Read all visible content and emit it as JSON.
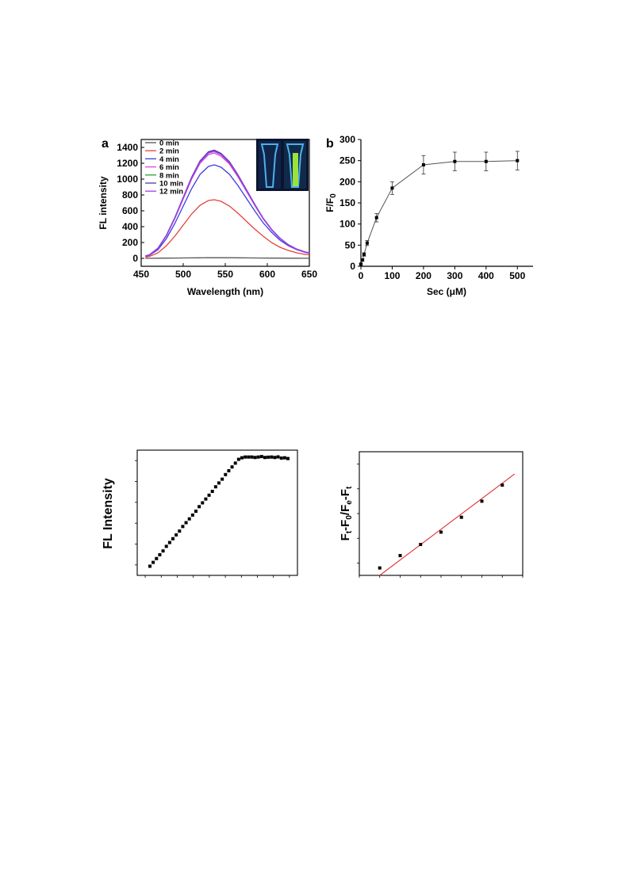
{
  "chart_data": [
    {
      "panel_label": "a",
      "type": "line",
      "xlabel": "Wavelength (nm)",
      "ylabel": "FL intensity",
      "xlim": [
        450,
        650
      ],
      "ylim": [
        -100,
        1500
      ],
      "xticks": [
        450,
        500,
        550,
        600,
        650
      ],
      "yticks": [
        0,
        200,
        400,
        600,
        800,
        1000,
        1200,
        1400
      ],
      "legend_position": "top-left",
      "inset": "photo of two cuvettes under UV light; right cuvette shows green fluorescence",
      "x": [
        455,
        460,
        470,
        480,
        490,
        500,
        510,
        520,
        530,
        537,
        545,
        555,
        565,
        575,
        585,
        595,
        605,
        615,
        625,
        635,
        645,
        650
      ],
      "series": [
        {
          "name": "0 min",
          "color": "#555555",
          "values": [
            0,
            1,
            2,
            3,
            4,
            5,
            6,
            7,
            8,
            8,
            8,
            8,
            7,
            6,
            5,
            4,
            3,
            3,
            2,
            2,
            1,
            1
          ]
        },
        {
          "name": "2 min",
          "color": "#e8413a",
          "values": [
            15,
            25,
            70,
            160,
            280,
            420,
            560,
            670,
            730,
            740,
            720,
            660,
            570,
            470,
            370,
            280,
            200,
            140,
            100,
            70,
            50,
            45
          ]
        },
        {
          "name": "4 min",
          "color": "#3d3ae0",
          "values": [
            25,
            40,
            110,
            250,
            440,
            660,
            880,
            1060,
            1160,
            1180,
            1150,
            1060,
            920,
            760,
            600,
            450,
            330,
            230,
            160,
            110,
            75,
            65
          ]
        },
        {
          "name": "6 min",
          "color": "#e040e0",
          "values": [
            28,
            45,
            125,
            285,
            500,
            750,
            1000,
            1200,
            1310,
            1330,
            1290,
            1190,
            1030,
            850,
            670,
            500,
            360,
            250,
            170,
            115,
            80,
            70
          ]
        },
        {
          "name": "8 min",
          "color": "#2e9e3a",
          "values": [
            30,
            46,
            128,
            290,
            510,
            765,
            1020,
            1225,
            1340,
            1360,
            1320,
            1215,
            1050,
            865,
            680,
            505,
            365,
            255,
            172,
            116,
            80,
            70
          ]
        },
        {
          "name": "10 min",
          "color": "#4b3aa8",
          "values": [
            30,
            47,
            130,
            293,
            515,
            770,
            1025,
            1230,
            1345,
            1365,
            1325,
            1220,
            1055,
            870,
            684,
            508,
            367,
            256,
            173,
            117,
            81,
            71
          ]
        },
        {
          "name": "12 min",
          "color": "#a040e8",
          "values": [
            29,
            46,
            127,
            288,
            507,
            760,
            1012,
            1215,
            1330,
            1350,
            1310,
            1205,
            1042,
            860,
            676,
            502,
            362,
            253,
            171,
            115,
            80,
            70
          ]
        }
      ]
    },
    {
      "panel_label": "b",
      "type": "scatter",
      "xlabel": "Sec (μM)",
      "ylabel": "F/F0",
      "ylabel_main": "F/F",
      "ylabel_sub": "0",
      "xlim": [
        0,
        550
      ],
      "ylim": [
        0,
        300
      ],
      "xticks": [
        0,
        100,
        200,
        300,
        400,
        500
      ],
      "yticks": [
        0,
        50,
        100,
        150,
        200,
        250,
        300
      ],
      "x": [
        0,
        5,
        10,
        20,
        50,
        100,
        200,
        300,
        400,
        500
      ],
      "values": [
        5,
        15,
        28,
        55,
        115,
        185,
        240,
        248,
        248,
        250
      ],
      "error": [
        2,
        3,
        4,
        6,
        10,
        15,
        22,
        22,
        22,
        22
      ]
    },
    {
      "type": "scatter",
      "ylabel": "FL Intensity",
      "xlabel": "",
      "xtick_count": 10,
      "ytick_count": 6,
      "x": [
        0,
        1,
        2,
        3,
        4,
        5,
        6,
        7,
        8,
        9,
        10,
        11,
        12,
        13,
        14,
        15,
        16,
        17,
        18,
        19,
        20,
        21,
        22,
        23,
        24,
        25,
        26,
        27,
        28,
        29,
        30,
        31,
        32,
        33,
        34,
        35,
        36,
        37,
        38,
        39,
        40,
        41,
        42
      ],
      "values": [
        0.06,
        0.085,
        0.11,
        0.135,
        0.16,
        0.19,
        0.215,
        0.24,
        0.265,
        0.29,
        0.32,
        0.345,
        0.37,
        0.395,
        0.42,
        0.45,
        0.475,
        0.5,
        0.525,
        0.55,
        0.58,
        0.605,
        0.63,
        0.66,
        0.685,
        0.71,
        0.735,
        0.76,
        0.77,
        0.775,
        0.775,
        0.775,
        0.772,
        0.775,
        0.778,
        0.772,
        0.774,
        0.775,
        0.772,
        0.776,
        0.768,
        0.77,
        0.765
      ],
      "ylim": [
        0,
        0.82
      ]
    },
    {
      "type": "scatter",
      "ylabel_parts": [
        "F",
        "t",
        "-F",
        "0",
        "/F",
        "e",
        "-F",
        "t"
      ],
      "xlabel": "",
      "xtick_count": 9,
      "ytick_count": 5,
      "x": [
        1,
        2,
        3,
        4,
        5,
        6,
        7
      ],
      "values": [
        0.06,
        0.16,
        0.25,
        0.35,
        0.47,
        0.6,
        0.73
      ],
      "fit": {
        "color": "#e03030",
        "x": [
          1,
          7.6
        ],
        "y": [
          0.0,
          0.82
        ]
      },
      "ylim": [
        0,
        1.0
      ],
      "xlim": [
        0,
        8
      ]
    }
  ]
}
